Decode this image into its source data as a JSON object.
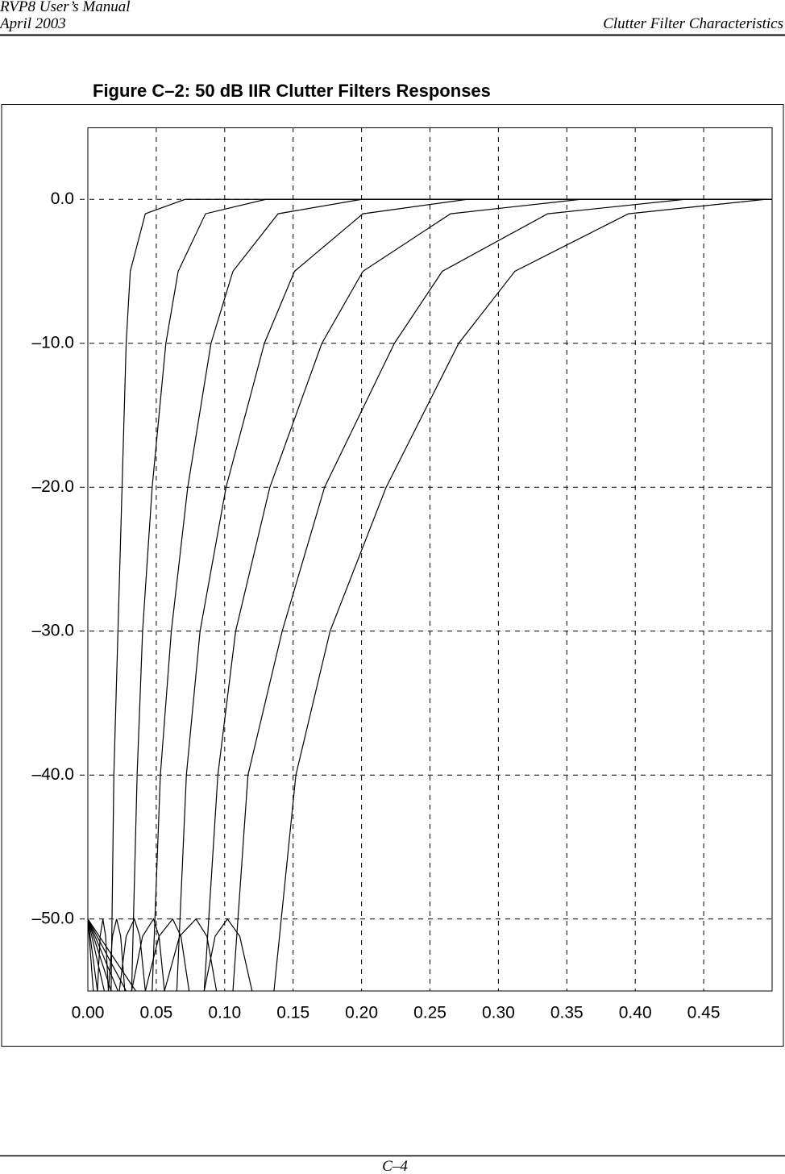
{
  "header": {
    "manual": "RVP8 User’s Manual",
    "date": "April 2003",
    "section": "Clutter Filter Characteristics"
  },
  "footer": {
    "page": "C–4"
  },
  "chart_data": {
    "type": "line",
    "title": "Figure C–2: 50 dB IIR Clutter Filters Responses",
    "xlim": [
      0,
      0.5
    ],
    "ylim": [
      -55,
      5
    ],
    "grid": true,
    "xticks": [
      {
        "value": 0,
        "label": "0.00"
      },
      {
        "value": 0.05,
        "label": "0.05"
      },
      {
        "value": 0.1,
        "label": "0.10"
      },
      {
        "value": 0.15,
        "label": "0.15"
      },
      {
        "value": 0.2,
        "label": "0.20"
      },
      {
        "value": 0.25,
        "label": "0.25"
      },
      {
        "value": 0.3,
        "label": "0.30"
      },
      {
        "value": 0.35,
        "label": "0.35"
      },
      {
        "value": 0.4,
        "label": "0.40"
      },
      {
        "value": 0.45,
        "label": "0.45"
      }
    ],
    "yticks": [
      {
        "value": 0,
        "label": "0.0"
      },
      {
        "value": -10,
        "label": "–10.0"
      },
      {
        "value": -20,
        "label": "–20.0"
      },
      {
        "value": -30,
        "label": "–30.0"
      },
      {
        "value": -40,
        "label": "–40.0"
      },
      {
        "value": -50,
        "label": "–50.0"
      }
    ],
    "series": [
      {
        "color": "#000000",
        "x": [
          0,
          0.004,
          null,
          0.007,
          0.009,
          0.011,
          0.013,
          0.015,
          null,
          0.017,
          0.019,
          0.025,
          0.028,
          0.031,
          0.042,
          0.071,
          0.5
        ],
        "values": [
          -50,
          -55,
          null,
          -55,
          -51.2,
          -50,
          -51.2,
          -55,
          null,
          -55,
          -40,
          -20,
          -10,
          -5,
          -1,
          0,
          0
        ]
      },
      {
        "color": "#000000",
        "x": [
          0,
          0.007,
          null,
          0.015,
          0.018,
          0.021,
          0.024,
          0.027,
          null,
          0.032,
          0.036,
          0.04,
          0.047,
          0.057,
          0.066,
          0.086,
          0.13,
          0.5
        ],
        "values": [
          -50,
          -55,
          null,
          -55,
          -51.2,
          -50,
          -51.2,
          -55,
          null,
          -55,
          -40,
          -30,
          -20,
          -10,
          -5,
          -1,
          0,
          0
        ]
      },
      {
        "color": "#000000",
        "x": [
          0,
          0.012,
          null,
          0.023,
          0.028,
          0.034,
          0.038,
          0.042,
          null,
          0.047,
          0.053,
          0.061,
          0.073,
          0.09,
          0.106,
          0.139,
          0.2,
          0.5
        ],
        "values": [
          -50,
          -55,
          null,
          -55,
          -51.2,
          -50,
          -51.2,
          -55,
          null,
          -55,
          -40,
          -30,
          -20,
          -10,
          -5,
          -1,
          0,
          0
        ]
      },
      {
        "color": "#000000",
        "x": [
          0,
          0.017,
          null,
          0.032,
          0.04,
          0.048,
          0.052,
          0.056,
          null,
          0.065,
          0.072,
          0.082,
          0.101,
          0.129,
          0.151,
          0.201,
          0.277,
          0.5
        ],
        "values": [
          -50,
          -55,
          null,
          -55,
          -51.2,
          -50,
          -51.2,
          -55,
          null,
          -55,
          -40,
          -30,
          -20,
          -10,
          -5,
          -1,
          0,
          0
        ]
      },
      {
        "color": "#000000",
        "x": [
          0,
          0.022,
          null,
          0.042,
          0.052,
          0.062,
          0.068,
          0.074,
          null,
          0.085,
          0.095,
          0.108,
          0.133,
          0.171,
          0.201,
          0.265,
          0.36,
          0.5
        ],
        "values": [
          -50,
          -55,
          null,
          -55,
          -51.2,
          -50,
          -51.2,
          -55,
          null,
          -55,
          -40,
          -30,
          -20,
          -10,
          -5,
          -1,
          0,
          0
        ]
      },
      {
        "color": "#000000",
        "x": [
          0,
          0.028,
          null,
          0.056,
          0.067,
          0.079,
          0.087,
          0.094,
          null,
          0.106,
          0.117,
          0.142,
          0.173,
          0.224,
          0.259,
          0.336,
          0.436,
          0.5
        ],
        "values": [
          -50,
          -55,
          null,
          -55,
          -51.2,
          -50,
          -51.2,
          -55,
          null,
          -55,
          -40,
          -30,
          -20,
          -10,
          -5,
          -1,
          0,
          0
        ]
      },
      {
        "color": "#000000",
        "x": [
          0,
          0.035,
          null,
          0.085,
          0.093,
          0.102,
          0.111,
          0.12,
          null,
          0.136,
          0.152,
          0.177,
          0.218,
          0.271,
          0.312,
          0.395,
          0.495
        ],
        "values": [
          -50,
          -55,
          null,
          -55,
          -51.2,
          -50,
          -51.2,
          -55,
          null,
          -55,
          -40,
          -30,
          -20,
          -10,
          -5,
          -1,
          0
        ]
      }
    ]
  }
}
